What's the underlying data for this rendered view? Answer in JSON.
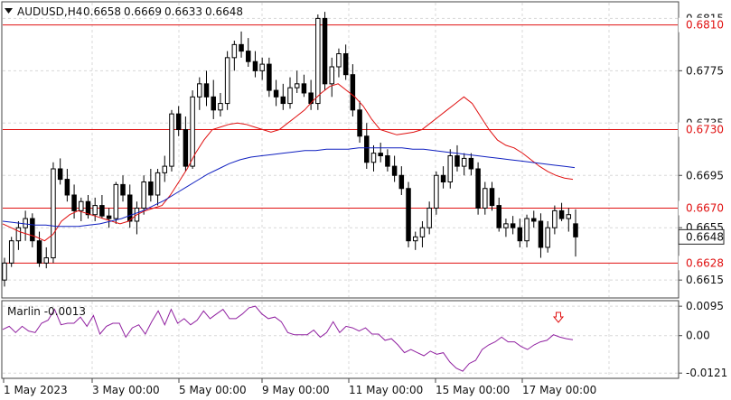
{
  "chart_data": [
    {
      "type": "candlestick",
      "symbol": "AUDUSD,H4",
      "ohlc_header": [
        "0.6658",
        "0.6669",
        "0.6633",
        "0.6648"
      ],
      "y_ticks": [
        "0.6815",
        "0.6775",
        "0.6735",
        "0.6695",
        "0.6655",
        "0.6615"
      ],
      "ylim": [
        0.6602,
        0.6827
      ],
      "x_ticks": [
        "1 May 2023",
        "3 May 00:00",
        "5 May 00:00",
        "9 May 00:00",
        "11 May 00:00",
        "15 May 00:00",
        "17 May 00:00"
      ],
      "levels": [
        {
          "price": 0.681,
          "label": "0.6810",
          "color": "#e01010"
        },
        {
          "price": 0.673,
          "label": "0.6730",
          "color": "#e01010"
        },
        {
          "price": 0.667,
          "label": "0.6670",
          "color": "#e01010"
        },
        {
          "price": 0.6628,
          "label": "0.6628",
          "color": "#e01010"
        }
      ],
      "current_price": "0.6648",
      "candles": [
        [
          0.6615,
          0.6632,
          0.661,
          0.6628
        ],
        [
          0.6628,
          0.6648,
          0.6625,
          0.6645
        ],
        [
          0.6645,
          0.666,
          0.6638,
          0.6655
        ],
        [
          0.6655,
          0.6668,
          0.6645,
          0.6662
        ],
        [
          0.6662,
          0.6666,
          0.664,
          0.6645
        ],
        [
          0.6645,
          0.6652,
          0.6625,
          0.6628
        ],
        [
          0.6628,
          0.664,
          0.6624,
          0.6632
        ],
        [
          0.6632,
          0.6705,
          0.6628,
          0.67
        ],
        [
          0.67,
          0.6708,
          0.6688,
          0.6692
        ],
        [
          0.6692,
          0.67,
          0.6675,
          0.668
        ],
        [
          0.668,
          0.6688,
          0.6662,
          0.6668
        ],
        [
          0.6668,
          0.6678,
          0.666,
          0.6675
        ],
        [
          0.6675,
          0.668,
          0.6662,
          0.6665
        ],
        [
          0.6665,
          0.6678,
          0.666,
          0.6672
        ],
        [
          0.6672,
          0.668,
          0.6662,
          0.6664
        ],
        [
          0.6664,
          0.667,
          0.6655,
          0.6662
        ],
        [
          0.6662,
          0.669,
          0.6658,
          0.6688
        ],
        [
          0.6688,
          0.6695,
          0.6675,
          0.668
        ],
        [
          0.668,
          0.6688,
          0.6655,
          0.666
        ],
        [
          0.666,
          0.6675,
          0.665,
          0.667
        ],
        [
          0.667,
          0.6695,
          0.6665,
          0.669
        ],
        [
          0.669,
          0.67,
          0.6675,
          0.668
        ],
        [
          0.668,
          0.67,
          0.6672,
          0.6697
        ],
        [
          0.6697,
          0.671,
          0.669,
          0.6702
        ],
        [
          0.6702,
          0.6745,
          0.6698,
          0.6742
        ],
        [
          0.6742,
          0.6748,
          0.6725,
          0.673
        ],
        [
          0.673,
          0.674,
          0.6698,
          0.6702
        ],
        [
          0.6702,
          0.676,
          0.67,
          0.6755
        ],
        [
          0.6755,
          0.677,
          0.6745,
          0.6765
        ],
        [
          0.6765,
          0.6775,
          0.6748,
          0.6755
        ],
        [
          0.6755,
          0.6768,
          0.6738,
          0.6745
        ],
        [
          0.6745,
          0.6758,
          0.674,
          0.675
        ],
        [
          0.675,
          0.679,
          0.6745,
          0.6785
        ],
        [
          0.6785,
          0.6798,
          0.6775,
          0.6795
        ],
        [
          0.6795,
          0.6805,
          0.6785,
          0.679
        ],
        [
          0.679,
          0.68,
          0.6778,
          0.6782
        ],
        [
          0.6782,
          0.679,
          0.677,
          0.6775
        ],
        [
          0.6775,
          0.6785,
          0.6768,
          0.678
        ],
        [
          0.678,
          0.6785,
          0.6755,
          0.676
        ],
        [
          0.676,
          0.6768,
          0.6748,
          0.6755
        ],
        [
          0.6755,
          0.6765,
          0.6745,
          0.675
        ],
        [
          0.675,
          0.677,
          0.6746,
          0.6762
        ],
        [
          0.6762,
          0.6775,
          0.6758,
          0.6765
        ],
        [
          0.6765,
          0.6772,
          0.6755,
          0.6758
        ],
        [
          0.6758,
          0.6768,
          0.6745,
          0.675
        ],
        [
          0.675,
          0.6818,
          0.6745,
          0.6815
        ],
        [
          0.6815,
          0.682,
          0.676,
          0.6765
        ],
        [
          0.6765,
          0.6785,
          0.6755,
          0.6778
        ],
        [
          0.6778,
          0.6792,
          0.677,
          0.6788
        ],
        [
          0.6788,
          0.6795,
          0.6768,
          0.6772
        ],
        [
          0.6772,
          0.678,
          0.674,
          0.6745
        ],
        [
          0.6745,
          0.6752,
          0.672,
          0.6725
        ],
        [
          0.6725,
          0.6735,
          0.67,
          0.6705
        ],
        [
          0.6705,
          0.6718,
          0.6698,
          0.6712
        ],
        [
          0.6712,
          0.672,
          0.6705,
          0.671
        ],
        [
          0.671,
          0.6715,
          0.6698,
          0.6702
        ],
        [
          0.6702,
          0.671,
          0.669,
          0.6695
        ],
        [
          0.6695,
          0.6702,
          0.668,
          0.6685
        ],
        [
          0.6685,
          0.669,
          0.664,
          0.6645
        ],
        [
          0.6645,
          0.6652,
          0.6638,
          0.6648
        ],
        [
          0.6648,
          0.666,
          0.664,
          0.6655
        ],
        [
          0.6655,
          0.6675,
          0.665,
          0.667
        ],
        [
          0.667,
          0.6698,
          0.6665,
          0.6695
        ],
        [
          0.6695,
          0.6702,
          0.6685,
          0.669
        ],
        [
          0.669,
          0.6715,
          0.6685,
          0.671
        ],
        [
          0.671,
          0.6718,
          0.6698,
          0.6702
        ],
        [
          0.6702,
          0.6712,
          0.6695,
          0.6708
        ],
        [
          0.6708,
          0.6712,
          0.6695,
          0.67
        ],
        [
          0.67,
          0.6705,
          0.6665,
          0.667
        ],
        [
          0.667,
          0.669,
          0.6665,
          0.6685
        ],
        [
          0.6685,
          0.669,
          0.6668,
          0.6672
        ],
        [
          0.6672,
          0.6678,
          0.6652,
          0.6655
        ],
        [
          0.6655,
          0.6662,
          0.6648,
          0.6658
        ],
        [
          0.6658,
          0.6664,
          0.665,
          0.6655
        ],
        [
          0.6655,
          0.6662,
          0.664,
          0.6645
        ],
        [
          0.6645,
          0.6665,
          0.664,
          0.6662
        ],
        [
          0.6662,
          0.6668,
          0.6655,
          0.666
        ],
        [
          0.666,
          0.6666,
          0.6632,
          0.664
        ],
        [
          0.664,
          0.666,
          0.6636,
          0.6655
        ],
        [
          0.6655,
          0.6672,
          0.665,
          0.6668
        ],
        [
          0.6668,
          0.6674,
          0.666,
          0.6662
        ],
        [
          0.6662,
          0.667,
          0.6652,
          0.6665
        ],
        [
          0.6658,
          0.6669,
          0.6633,
          0.6648
        ]
      ],
      "series": [
        {
          "color": "#e01010",
          "values": [
            0.6658,
            0.6655,
            0.6652,
            0.665,
            0.6648,
            0.6645,
            0.665,
            0.666,
            0.6665,
            0.6668,
            0.6666,
            0.6664,
            0.6662,
            0.666,
            0.6658,
            0.666,
            0.6665,
            0.6668,
            0.667,
            0.6672,
            0.668,
            0.669,
            0.67,
            0.6712,
            0.6722,
            0.673,
            0.6732,
            0.6734,
            0.6735,
            0.6734,
            0.6732,
            0.673,
            0.6728,
            0.673,
            0.6735,
            0.674,
            0.6745,
            0.6752,
            0.6758,
            0.6763,
            0.6765,
            0.676,
            0.6755,
            0.6748,
            0.6738,
            0.673,
            0.6728,
            0.6726,
            0.6727,
            0.6728,
            0.673,
            0.6735,
            0.674,
            0.6745,
            0.675,
            0.6755,
            0.675,
            0.674,
            0.673,
            0.6722,
            0.6718,
            0.6716,
            0.6712,
            0.6707,
            0.6702,
            0.6698,
            0.6695,
            0.6693,
            0.6692
          ]
        },
        {
          "color": "#1020c0",
          "values": [
            0.666,
            0.6659,
            0.6658,
            0.6657,
            0.6657,
            0.6656,
            0.6656,
            0.6656,
            0.6657,
            0.6658,
            0.666,
            0.6662,
            0.6665,
            0.6668,
            0.6672,
            0.6676,
            0.6681,
            0.6686,
            0.6691,
            0.6696,
            0.67,
            0.6704,
            0.6707,
            0.6709,
            0.671,
            0.6711,
            0.6712,
            0.6713,
            0.6714,
            0.6714,
            0.6715,
            0.6715,
            0.6715,
            0.6716,
            0.6716,
            0.6716,
            0.6716,
            0.6716,
            0.6715,
            0.6715,
            0.6714,
            0.6713,
            0.6712,
            0.6711,
            0.671,
            0.6709,
            0.6708,
            0.6707,
            0.6706,
            0.6705,
            0.6704,
            0.6703,
            0.6702,
            0.6701
          ]
        }
      ]
    },
    {
      "type": "line",
      "title": "Marlin -0.0013",
      "y_ticks": [
        "0.0095",
        "0.00",
        "-0.0121"
      ],
      "ylim": [
        -0.0135,
        0.011
      ],
      "color": "#9020a0",
      "values": [
        0.002,
        0.003,
        0.001,
        0.003,
        0.0015,
        0.001,
        0.004,
        0.005,
        0.0085,
        0.0035,
        0.004,
        0.004,
        0.006,
        0.003,
        0.0065,
        0.0005,
        0.003,
        0.004,
        0.004,
        -0.0005,
        0.0025,
        0.0035,
        0.0005,
        0.0045,
        0.008,
        0.0035,
        0.0085,
        0.004,
        0.0055,
        0.0035,
        0.005,
        0.008,
        0.0055,
        0.007,
        0.0085,
        0.0055,
        0.0055,
        0.007,
        0.009,
        0.0095,
        0.007,
        0.0055,
        0.006,
        0.0045,
        0.001,
        0.0003,
        0.0003,
        0.0003,
        0.0018,
        -0.0005,
        0.001,
        0.0045,
        0.001,
        0.003,
        0.0025,
        0.0015,
        0.0025,
        0.0005,
        0.0005,
        -0.0015,
        -0.001,
        -0.003,
        -0.0055,
        -0.0045,
        -0.0055,
        -0.0065,
        -0.005,
        -0.006,
        -0.0055,
        -0.0085,
        -0.0105,
        -0.0115,
        -0.009,
        -0.008,
        -0.0045,
        -0.003,
        -0.002,
        -0.0005,
        -0.002,
        -0.002,
        -0.0035,
        -0.0045,
        -0.003,
        -0.002,
        -0.0015,
        0.0003,
        -0.0005,
        -0.001,
        -0.0013
      ],
      "arrow_color": "#e01010"
    }
  ]
}
